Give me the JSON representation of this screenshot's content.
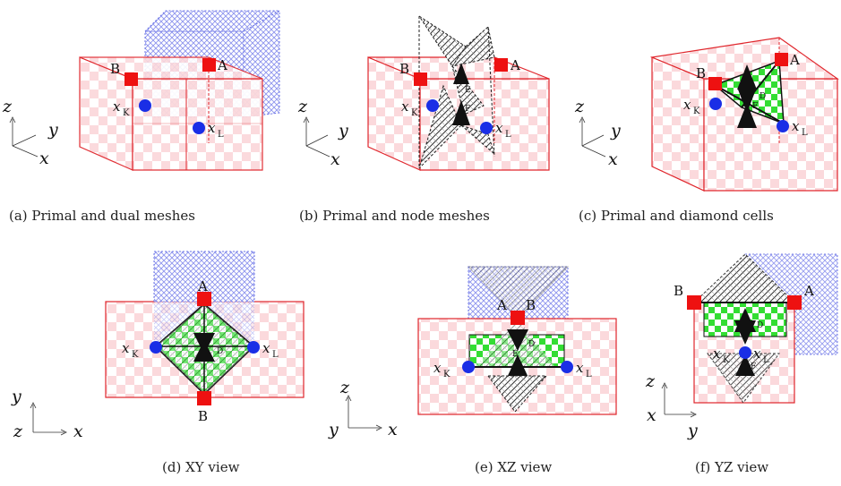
{
  "figure": {
    "panels": [
      {
        "id": "a",
        "caption": "(a) Primal and dual meshes"
      },
      {
        "id": "b",
        "caption": "(b) Primal and node meshes"
      },
      {
        "id": "c",
        "caption": "(c) Primal and diamond cells"
      },
      {
        "id": "d",
        "caption": "(d) XY view"
      },
      {
        "id": "e",
        "caption": "(e) XZ view"
      },
      {
        "id": "f",
        "caption": "(f) YZ view"
      }
    ],
    "labels": {
      "A": "A",
      "B": "B",
      "xK_x": "x",
      "xK_sub": "K",
      "xL_x": "x",
      "xL_sub": "L",
      "D": "D",
      "E": "E",
      "F": "F"
    },
    "axes": {
      "x": "x",
      "y": "y",
      "z": "z"
    }
  },
  "colors": {
    "primal": "#e0262c",
    "primal_fill": "#fce3e5",
    "dual": "#6a73e6",
    "node": "#111111",
    "diamond": "#2fe02f",
    "marker_red": "#ee1111",
    "marker_blue": "#1a2ee6"
  }
}
